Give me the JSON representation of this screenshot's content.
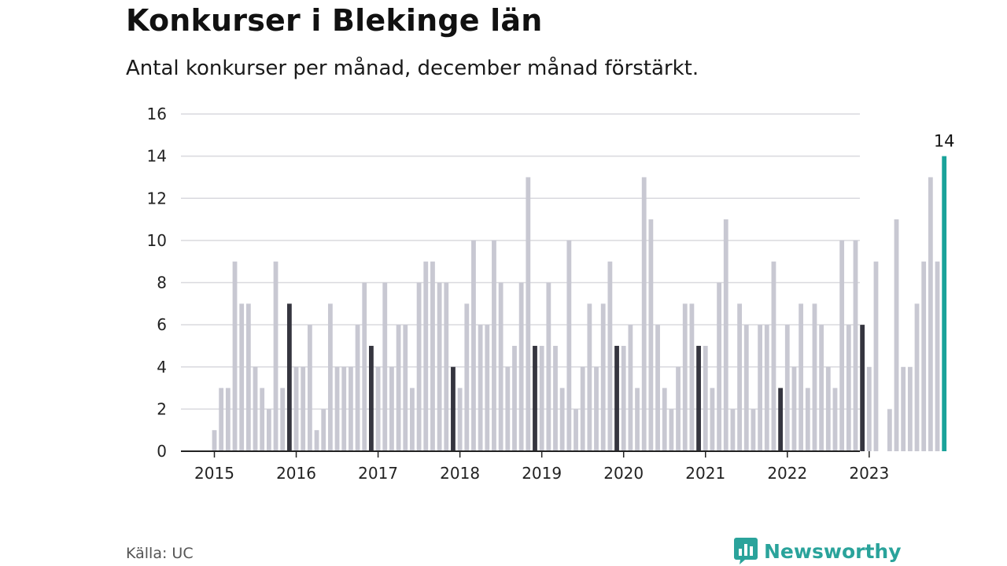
{
  "header": {
    "title": "Konkurser i Blekinge län",
    "subtitle": "Antal konkurser per månad, december månad förstärkt."
  },
  "footer": {
    "source": "Källa: UC",
    "brand": "Newsworthy"
  },
  "colors": {
    "bar": "#c8c8d2",
    "december": "#35353f",
    "latest": "#1aa39a",
    "grid": "#d9d9de",
    "axis": "#222222",
    "brand": "#2aa39b"
  },
  "chart_data": {
    "type": "bar",
    "title": "Konkurser i Blekinge län",
    "subtitle": "Antal konkurser per månad, december månad förstärkt.",
    "xlabel": "",
    "ylabel": "",
    "ylim": [
      0,
      16
    ],
    "yticks": [
      0,
      2,
      4,
      6,
      8,
      10,
      12,
      14,
      16
    ],
    "x_tick_labels": [
      "2015",
      "2016",
      "2017",
      "2018",
      "2019",
      "2020",
      "2021",
      "2022",
      "2023"
    ],
    "grid": true,
    "legend": "none",
    "start": "2015-01",
    "highlight": "december months",
    "values": [
      1,
      3,
      3,
      9,
      7,
      7,
      4,
      3,
      2,
      9,
      3,
      7,
      4,
      4,
      6,
      1,
      2,
      7,
      4,
      4,
      4,
      6,
      8,
      5,
      4,
      8,
      4,
      6,
      6,
      3,
      8,
      9,
      9,
      8,
      8,
      4,
      3,
      7,
      10,
      6,
      6,
      10,
      8,
      4,
      5,
      8,
      13,
      5,
      5,
      8,
      5,
      3,
      10,
      2,
      4,
      7,
      4,
      7,
      9,
      5,
      5,
      6,
      3,
      13,
      11,
      6,
      3,
      2,
      4,
      7,
      7,
      5,
      5,
      3,
      8,
      11,
      2,
      7,
      6,
      2,
      6,
      6,
      9,
      3,
      6,
      4,
      7,
      3,
      7,
      6,
      4,
      3,
      10,
      6,
      10,
      6,
      4,
      9,
      0,
      2,
      11,
      4,
      4,
      7,
      9,
      13,
      9,
      14
    ],
    "annotations": [
      {
        "text": "14",
        "month_index": 107,
        "value": 14
      }
    ]
  }
}
